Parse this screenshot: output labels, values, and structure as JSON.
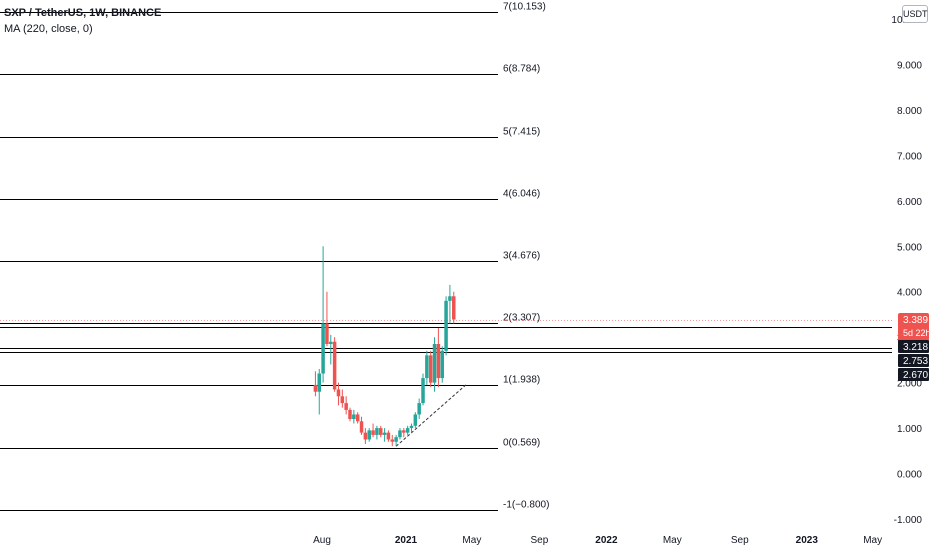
{
  "header": {
    "symbol_title": "SXP / TetherUS, 1W, BINANCE",
    "indicator": "MA (220, close, 0)",
    "currency": "USDT"
  },
  "colors": {
    "up": "#26a69a",
    "down": "#ef5350",
    "fib_line": "#000000",
    "axis_text": "#131722",
    "price_badge": "#ef5350",
    "level_badge": "#131722"
  },
  "chart_data": {
    "type": "candlestick",
    "ylim": [
      -1.1,
      10.3
    ],
    "y_ticks": [
      "-1.000",
      "0.000",
      "1.000",
      "2.000",
      "3.000",
      "4.000",
      "5.000",
      "6.000",
      "7.000",
      "8.000",
      "9.000",
      "10.000"
    ],
    "y_tick_values": [
      -1,
      0,
      1,
      2,
      3,
      4,
      5,
      6,
      7,
      8,
      9,
      10
    ],
    "x_ticks": [
      {
        "label": "Aug",
        "date": "2020-08-01",
        "bold": false
      },
      {
        "label": "2021",
        "date": "2021-01-01",
        "bold": true
      },
      {
        "label": "May",
        "date": "2021-05-01",
        "bold": false
      },
      {
        "label": "Sep",
        "date": "2021-09-01",
        "bold": false
      },
      {
        "label": "2022",
        "date": "2022-01-01",
        "bold": true
      },
      {
        "label": "May",
        "date": "2022-05-01",
        "bold": false
      },
      {
        "label": "Sep",
        "date": "2022-09-01",
        "bold": false
      },
      {
        "label": "2023",
        "date": "2023-01-01",
        "bold": true
      },
      {
        "label": "May",
        "date": "2023-05-01",
        "bold": false
      }
    ],
    "fib_levels": [
      {
        "label": "7(10.153)",
        "value": 10.153
      },
      {
        "label": "6(8.784)",
        "value": 8.784
      },
      {
        "label": "5(7.415)",
        "value": 7.415
      },
      {
        "label": "4(6.046)",
        "value": 6.046
      },
      {
        "label": "3(4.676)",
        "value": 4.676
      },
      {
        "label": "2(3.307)",
        "value": 3.307
      },
      {
        "label": "1(1.938)",
        "value": 1.938
      },
      {
        "label": "0(0.569)",
        "value": 0.569
      },
      {
        "label": "-1(−0.800)",
        "value": -0.8
      }
    ],
    "trend_line": {
      "start": {
        "date": "2020-12-14",
        "value": 0.6
      },
      "end": {
        "date": "2021-04-20",
        "value": 1.95
      }
    },
    "horizontal_levels": [
      3.218,
      2.753,
      2.67
    ],
    "last_price": {
      "value": 3.389,
      "label": "3.389",
      "countdown": "5d 22h"
    },
    "level_labels": [
      {
        "value": 3.218,
        "label": "3.218"
      },
      {
        "value": 2.753,
        "label": "2.753"
      },
      {
        "value": 2.67,
        "label": "2.670"
      }
    ],
    "candles": [
      {
        "date": "2020-07-20",
        "o": 1.95,
        "h": 2.25,
        "l": 1.7,
        "c": 1.8
      },
      {
        "date": "2020-07-27",
        "o": 1.8,
        "h": 2.3,
        "l": 1.3,
        "c": 2.2
      },
      {
        "date": "2020-08-03",
        "o": 2.2,
        "h": 5.0,
        "l": 2.0,
        "c": 3.3
      },
      {
        "date": "2020-08-10",
        "o": 3.3,
        "h": 4.0,
        "l": 2.8,
        "c": 2.85
      },
      {
        "date": "2020-08-17",
        "o": 2.85,
        "h": 3.05,
        "l": 2.4,
        "c": 2.9
      },
      {
        "date": "2020-08-24",
        "o": 2.9,
        "h": 3.0,
        "l": 1.8,
        "c": 1.85
      },
      {
        "date": "2020-08-31",
        "o": 1.85,
        "h": 2.0,
        "l": 1.5,
        "c": 1.7
      },
      {
        "date": "2020-09-07",
        "o": 1.7,
        "h": 1.85,
        "l": 1.45,
        "c": 1.55
      },
      {
        "date": "2020-09-14",
        "o": 1.55,
        "h": 1.7,
        "l": 1.3,
        "c": 1.4
      },
      {
        "date": "2020-09-21",
        "o": 1.4,
        "h": 1.45,
        "l": 1.15,
        "c": 1.2
      },
      {
        "date": "2020-09-28",
        "o": 1.2,
        "h": 1.4,
        "l": 1.1,
        "c": 1.3
      },
      {
        "date": "2020-10-05",
        "o": 1.3,
        "h": 1.35,
        "l": 1.1,
        "c": 1.15
      },
      {
        "date": "2020-10-12",
        "o": 1.15,
        "h": 1.25,
        "l": 0.85,
        "c": 0.9
      },
      {
        "date": "2020-10-19",
        "o": 0.9,
        "h": 1.0,
        "l": 0.65,
        "c": 0.75
      },
      {
        "date": "2020-10-26",
        "o": 0.75,
        "h": 1.0,
        "l": 0.7,
        "c": 0.95
      },
      {
        "date": "2020-11-02",
        "o": 0.95,
        "h": 1.1,
        "l": 0.8,
        "c": 0.85
      },
      {
        "date": "2020-11-09",
        "o": 0.85,
        "h": 1.05,
        "l": 0.75,
        "c": 1.0
      },
      {
        "date": "2020-11-16",
        "o": 1.0,
        "h": 1.05,
        "l": 0.8,
        "c": 0.85
      },
      {
        "date": "2020-11-23",
        "o": 0.85,
        "h": 1.0,
        "l": 0.7,
        "c": 0.9
      },
      {
        "date": "2020-11-30",
        "o": 0.9,
        "h": 0.95,
        "l": 0.7,
        "c": 0.75
      },
      {
        "date": "2020-12-07",
        "o": 0.75,
        "h": 0.85,
        "l": 0.6,
        "c": 0.7
      },
      {
        "date": "2020-12-14",
        "o": 0.7,
        "h": 0.85,
        "l": 0.6,
        "c": 0.8
      },
      {
        "date": "2020-12-21",
        "o": 0.8,
        "h": 1.0,
        "l": 0.75,
        "c": 0.95
      },
      {
        "date": "2020-12-28",
        "o": 0.95,
        "h": 1.0,
        "l": 0.8,
        "c": 0.9
      },
      {
        "date": "2021-01-04",
        "o": 0.9,
        "h": 1.05,
        "l": 0.85,
        "c": 1.0
      },
      {
        "date": "2021-01-11",
        "o": 1.0,
        "h": 1.1,
        "l": 0.9,
        "c": 1.05
      },
      {
        "date": "2021-01-18",
        "o": 1.05,
        "h": 1.35,
        "l": 1.0,
        "c": 1.3
      },
      {
        "date": "2021-01-25",
        "o": 1.3,
        "h": 1.65,
        "l": 1.2,
        "c": 1.55
      },
      {
        "date": "2021-02-01",
        "o": 1.55,
        "h": 2.2,
        "l": 1.5,
        "c": 2.1
      },
      {
        "date": "2021-02-08",
        "o": 2.1,
        "h": 2.7,
        "l": 1.95,
        "c": 2.6
      },
      {
        "date": "2021-02-15",
        "o": 2.6,
        "h": 2.7,
        "l": 1.9,
        "c": 2.0
      },
      {
        "date": "2021-02-22",
        "o": 2.0,
        "h": 3.0,
        "l": 1.8,
        "c": 2.85
      },
      {
        "date": "2021-03-01",
        "o": 2.85,
        "h": 3.2,
        "l": 1.9,
        "c": 2.1
      },
      {
        "date": "2021-03-08",
        "o": 2.1,
        "h": 2.8,
        "l": 2.0,
        "c": 2.7
      },
      {
        "date": "2021-03-15",
        "o": 2.7,
        "h": 3.9,
        "l": 2.6,
        "c": 3.8
      },
      {
        "date": "2021-03-22",
        "o": 3.8,
        "h": 4.15,
        "l": 3.3,
        "c": 3.9
      },
      {
        "date": "2021-03-29",
        "o": 3.9,
        "h": 4.0,
        "l": 3.3,
        "c": 3.389
      }
    ]
  }
}
